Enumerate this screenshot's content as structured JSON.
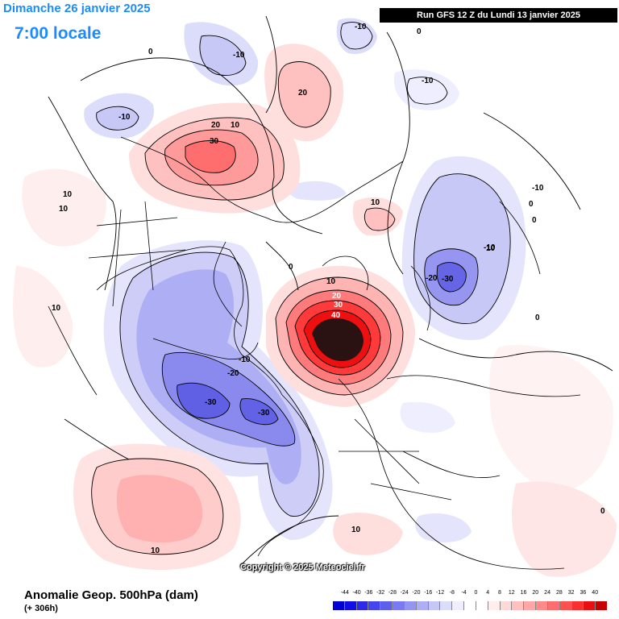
{
  "header": {
    "date_text": "Dimanche 26 janvier 2025",
    "time_text": "7:00 locale",
    "run_text": "Run GFS 12 Z du Lundi 13 janvier 2025"
  },
  "footer": {
    "product_title": "Anomalie Geop. 500hPa (dam)",
    "lead_time": "(+ 306h)",
    "copyright": "Copyright © 2025 Meteociel.fr"
  },
  "legend": {
    "ticks": [
      "-44",
      "-40",
      "-36",
      "-32",
      "-28",
      "-24",
      "-20",
      "-16",
      "-12",
      "-8",
      "-4",
      "0",
      "4",
      "8",
      "12",
      "16",
      "20",
      "24",
      "28",
      "32",
      "36",
      "40"
    ],
    "colors": [
      "#0000d4",
      "#1010e6",
      "#2a2ae8",
      "#4545ec",
      "#5f5fee",
      "#7a7af2",
      "#9494f4",
      "#aeaef7",
      "#c6c6f9",
      "#dcdcfb",
      "#eeeeff",
      "#ffffff",
      "#ffffff",
      "#ffeeee",
      "#ffd8d8",
      "#ffc0c0",
      "#ffa6a6",
      "#ff8a8a",
      "#ff6e6e",
      "#ff5050",
      "#f83030",
      "#e81010",
      "#c80000"
    ]
  },
  "contour_labels": [
    "-10",
    "-10",
    "-10",
    "-10",
    "0",
    "0",
    "20",
    "20",
    "10",
    "30",
    "10",
    "10",
    "10",
    "10",
    "-10",
    "0",
    "10",
    "0",
    "0",
    "-20",
    "-30",
    "-10",
    "10",
    "20",
    "30",
    "40",
    "-10",
    "-20",
    "-30",
    "-30",
    "10",
    "10",
    "0",
    "0"
  ],
  "colors": {
    "map_lines": "#000000",
    "negative_core": "#3030e0",
    "positive_core": "#e01010",
    "extreme_core": "#2a1212"
  }
}
